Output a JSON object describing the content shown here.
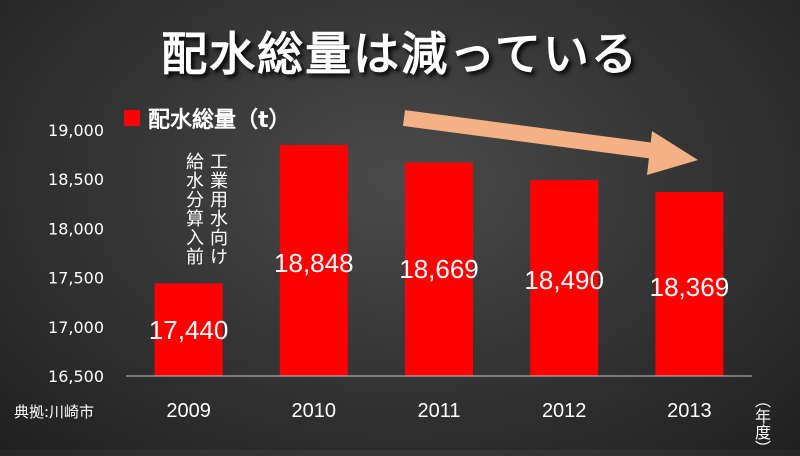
{
  "title": "配水総量は減っている",
  "legend_label": "配水総量（t）",
  "note_line1": "工業用水向け",
  "note_line2": "給水分算入前",
  "source": "典拠:川崎市",
  "yunit": "（年度）",
  "colors": {
    "bar": "#ff0000",
    "arrow": "#f4b183"
  },
  "chart_data": {
    "type": "bar",
    "categories": [
      "2009",
      "2010",
      "2011",
      "2012",
      "2013"
    ],
    "series": [
      {
        "name": "配水総量（t）",
        "values": [
          17440,
          18848,
          18669,
          18490,
          18369
        ]
      }
    ],
    "data_labels": [
      "17,440",
      "18,848",
      "18,669",
      "18,490",
      "18,369"
    ],
    "yticks": [
      "16,500",
      "17,000",
      "17,500",
      "18,000",
      "18,500",
      "19,000"
    ],
    "ylim": [
      16500,
      19000
    ],
    "title": "配水総量は減っている",
    "xlabel": "（年度）",
    "ylabel": "",
    "grid": false,
    "legend": "top-left"
  }
}
